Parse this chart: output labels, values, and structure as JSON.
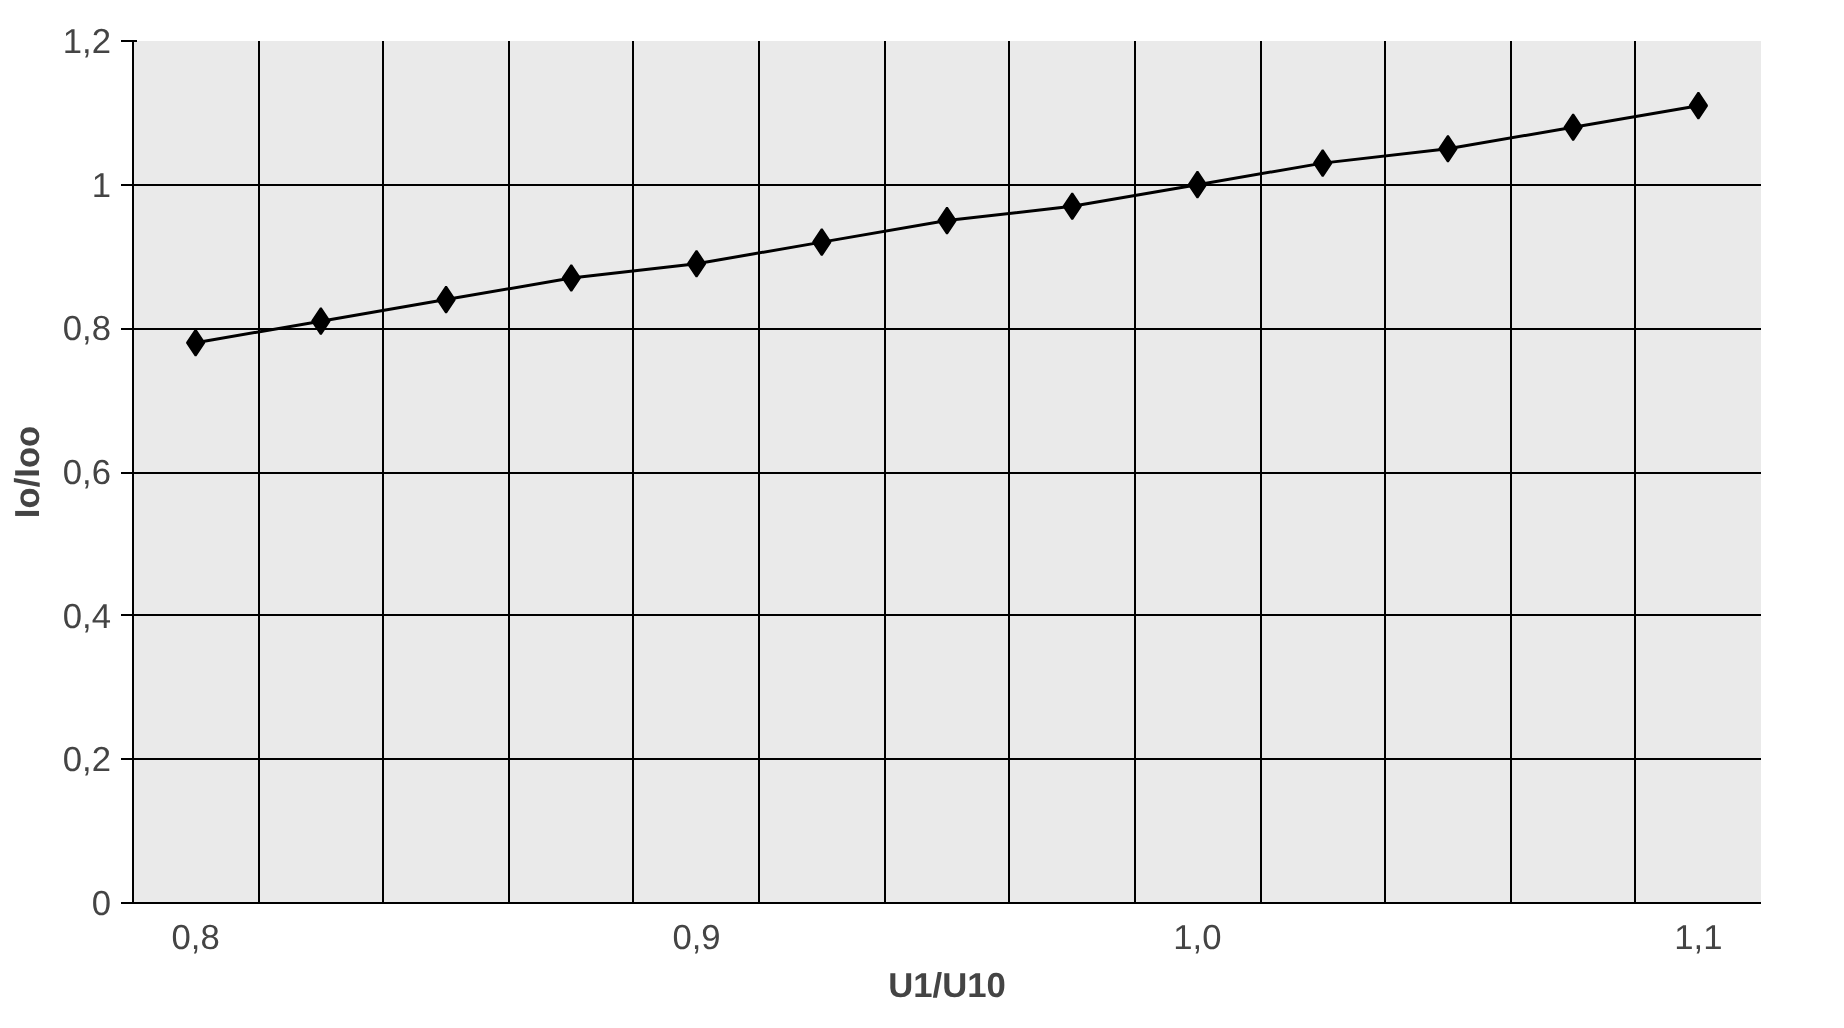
{
  "chart_data": {
    "type": "line",
    "xlabel": "U1/U10",
    "ylabel": "Io/Ioo",
    "categories": [
      "0,8",
      null,
      null,
      null,
      "0,9",
      null,
      null,
      null,
      "1,0",
      null,
      null,
      null,
      "1,1"
    ],
    "series": [
      {
        "color": "#000000",
        "values": [
          0.78,
          0.81,
          0.84,
          0.87,
          0.89,
          0.92,
          0.95,
          0.97,
          1.0,
          1.03,
          1.05,
          1.08,
          1.11
        ]
      }
    ],
    "ylim": [
      0,
      1.2
    ],
    "yticks": [
      0,
      {
        "value": 0.2,
        "label": "0,2"
      },
      {
        "value": 0.4,
        "label": "0,4"
      },
      {
        "value": 0.6,
        "label": "0,6"
      },
      {
        "value": 0.8,
        "label": "0,8"
      },
      1,
      {
        "value": 1.2,
        "label": "1,2"
      }
    ],
    "grid": true,
    "marker": "diamond",
    "line_style": "solid"
  }
}
